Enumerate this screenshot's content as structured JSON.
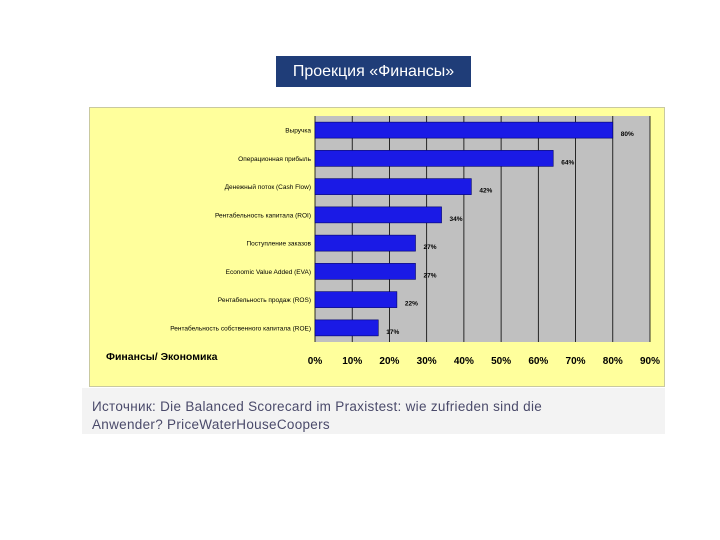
{
  "slide_title": "Проекция «Финансы»",
  "source_line1": "Источник: Die Balanced Scorecard im Praxistest: wie zufrieden sind die",
  "source_line2": "Anwender? PriceWaterHouseCoopers",
  "colors": {
    "bar": "#1a1ae6",
    "plot_bg": "#c0c0c0",
    "figure_bg": "#ffff9c",
    "title_bg": "#1f3d78"
  },
  "chart_data": {
    "type": "bar",
    "orientation": "horizontal",
    "section_label": "Финансы/ Экономика",
    "categories": [
      "Выручка",
      "Операционная прибыль",
      "Денежный поток (Cash Flow)",
      "Рентабельность капитала (ROI)",
      "Поступление заказов",
      "Economic Value Added (EVA)",
      "Рентабельность продаж (ROS)",
      "Рентабельность собственного капитала (ROE)"
    ],
    "values": [
      80,
      64,
      42,
      34,
      27,
      27,
      22,
      17
    ],
    "value_labels": [
      "80%",
      "64%",
      "42%",
      "34%",
      "27%",
      "27%",
      "22%",
      "17%"
    ],
    "xlim": [
      0,
      90
    ],
    "x_ticks": [
      "0%",
      "10%",
      "20%",
      "30%",
      "40%",
      "50%",
      "60%",
      "70%",
      "80%",
      "90%"
    ],
    "grid": true
  }
}
